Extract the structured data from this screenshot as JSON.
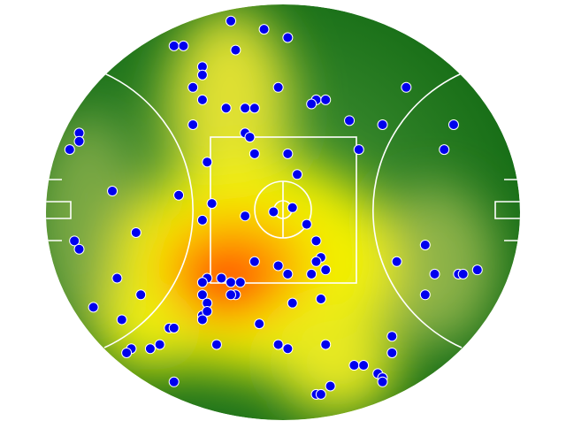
{
  "chart_data": {
    "type": "scatter",
    "color": "#0000ee",
    "xlim": [
      0,
      100
    ],
    "ylim": [
      0,
      100
    ],
    "x": [
      39,
      46,
      51,
      27,
      29,
      40,
      33,
      33,
      31,
      49,
      76,
      57,
      56,
      59,
      33,
      38,
      42,
      44,
      64,
      71,
      31,
      86,
      42,
      43,
      7,
      7,
      5,
      84,
      66,
      51,
      44,
      34,
      53,
      14,
      28,
      35,
      48,
      52,
      42,
      33,
      55,
      19,
      57,
      6,
      7,
      80,
      58,
      57,
      74,
      59,
      44,
      49,
      51,
      56,
      91,
      82,
      87,
      88,
      15,
      34,
      33,
      37,
      39,
      41,
      80,
      20,
      33,
      40,
      39,
      34,
      58,
      52,
      10,
      33,
      34,
      33,
      16,
      45,
      26,
      27,
      73,
      24,
      22,
      36,
      49,
      51,
      59,
      18,
      17,
      73,
      65,
      67,
      70,
      71,
      27,
      60,
      57,
      58,
      71
    ],
    "y": [
      96,
      94,
      92,
      90,
      90,
      89,
      85,
      83,
      80,
      80,
      80,
      77,
      76,
      77,
      77,
      75,
      75,
      75,
      72,
      71,
      71,
      71,
      69,
      68,
      69,
      67,
      65,
      65,
      65,
      64,
      64,
      62,
      59,
      55,
      54,
      52,
      50,
      51,
      49,
      48,
      47,
      45,
      43,
      43,
      41,
      42,
      39,
      38,
      38,
      36,
      38,
      37,
      35,
      35,
      36,
      35,
      35,
      35,
      34,
      34,
      33,
      34,
      33,
      33,
      30,
      30,
      30,
      30,
      30,
      28,
      29,
      28,
      27,
      25,
      26,
      24,
      24,
      23,
      22,
      22,
      20,
      18,
      17,
      18,
      18,
      17,
      18,
      17,
      16,
      16,
      13,
      13,
      11,
      10,
      9,
      8,
      6,
      6,
      9
    ]
  }
}
